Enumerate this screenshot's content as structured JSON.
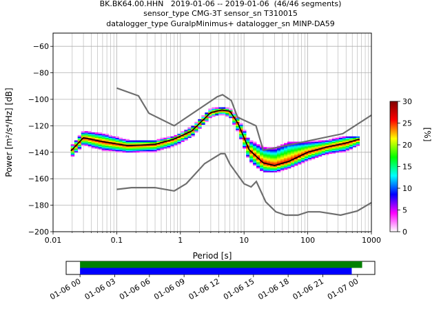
{
  "chart_data": [
    {
      "type": "heatmap",
      "title_lines": [
        "BK.BK64.00.HHN   2019-01-06 -- 2019-01-06  (46/46 segments)",
        "sensor_type CMG-3T sensor_sn T310015",
        "datalogger_type GuralpMinimus+ datalogger_sn MINP-DA59"
      ],
      "xlabel": "Period [s]",
      "ylabel": "Power [m²/s⁴/Hz] [dB]",
      "x_scale": "log",
      "xlim": [
        0.01,
        1000
      ],
      "ylim": [
        -200,
        -50
      ],
      "x_ticks": [
        0.01,
        0.1,
        1,
        10,
        100,
        1000
      ],
      "x_tick_labels": [
        "0.01",
        "0.1",
        "1",
        "10",
        "100",
        "1000"
      ],
      "y_ticks": [
        -200,
        -180,
        -160,
        -140,
        -120,
        -100,
        -80,
        -60
      ],
      "y_tick_labels": [
        "−200",
        "−180",
        "−160",
        "−140",
        "−120",
        "−100",
        "−80",
        "−60"
      ],
      "grid": true,
      "colorbar": {
        "label": "[%]",
        "range": [
          0,
          30
        ],
        "ticks": [
          0,
          5,
          10,
          15,
          20,
          25,
          30
        ],
        "tick_labels": [
          "0",
          "5",
          "10",
          "15",
          "20",
          "25",
          "30"
        ],
        "colormap": [
          "#ffffff",
          "#ff00ff",
          "#0000ff",
          "#00ffff",
          "#00ff00",
          "#ffff00",
          "#ff0000",
          "#800000"
        ]
      },
      "median": {
        "period": [
          0.019,
          0.03,
          0.06,
          0.15,
          0.4,
          0.8,
          1.5,
          3,
          4.5,
          6,
          8,
          12,
          20,
          30,
          50,
          100,
          200,
          400,
          650
        ],
        "power": [
          -139,
          -129,
          -132,
          -135,
          -134,
          -130,
          -124,
          -110,
          -108,
          -109,
          -118,
          -138,
          -148,
          -150,
          -147,
          -140,
          -136,
          -133,
          -130
        ]
      },
      "spread": {
        "period": [
          0.019,
          0.03,
          0.06,
          0.15,
          0.4,
          0.8,
          1.5,
          3,
          4.5,
          6,
          8,
          12,
          20,
          30,
          50,
          100,
          200,
          400,
          650
        ],
        "upper": [
          -136,
          -124,
          -126,
          -131,
          -131,
          -128,
          -121,
          -107,
          -106,
          -107,
          -114,
          -131,
          -136,
          -137,
          -132,
          -132,
          -131,
          -128,
          -128
        ],
        "lower": [
          -144,
          -134,
          -138,
          -140,
          -139,
          -135,
          -128,
          -113,
          -111,
          -113,
          -124,
          -146,
          -155,
          -155,
          -152,
          -146,
          -141,
          -139,
          -134
        ]
      },
      "noise_models": [
        {
          "name": "high",
          "period": [
            0.1,
            0.22,
            0.32,
            0.8,
            3.8,
            4.6,
            6.3,
            7.9,
            15.4,
            20,
            354.8,
            1000
          ],
          "power": [
            -91.5,
            -97.4,
            -110.5,
            -120,
            -98,
            -96.5,
            -101,
            -113.5,
            -120,
            -138.5,
            -126,
            -112
          ]
        },
        {
          "name": "low",
          "period": [
            0.1,
            0.17,
            0.4,
            0.8,
            1.24,
            2.4,
            4.3,
            5,
            6,
            10,
            12.9,
            15.6,
            21.9,
            31.6,
            45,
            70,
            101,
            154,
            328,
            600,
            1000
          ],
          "power": [
            -168,
            -166.7,
            -166.7,
            -169.2,
            -163.7,
            -148.6,
            -141.1,
            -141.1,
            -149,
            -163.8,
            -166.2,
            -162.1,
            -177.5,
            -185,
            -187.5,
            -187.5,
            -185,
            -185,
            -187.5,
            -184.4,
            -178
          ]
        }
      ]
    },
    {
      "type": "timeline",
      "x_tick_labels": [
        "01-06 00",
        "01-06 03",
        "01-06 06",
        "01-06 09",
        "01-06 12",
        "01-06 15",
        "01-06 18",
        "01-06 21",
        "01-07 00"
      ],
      "x_ticks_hours": [
        0,
        3,
        6,
        9,
        12,
        15,
        18,
        21,
        24
      ],
      "xlim_hours": [
        -1.2,
        25.5
      ],
      "bars": [
        {
          "name": "data coverage",
          "color": "#008000",
          "start_hour": 0,
          "end_hour": 24.4
        },
        {
          "name": "psd segments",
          "color": "#0000ff",
          "start_hour": 0,
          "end_hour": 23.5
        }
      ]
    }
  ]
}
